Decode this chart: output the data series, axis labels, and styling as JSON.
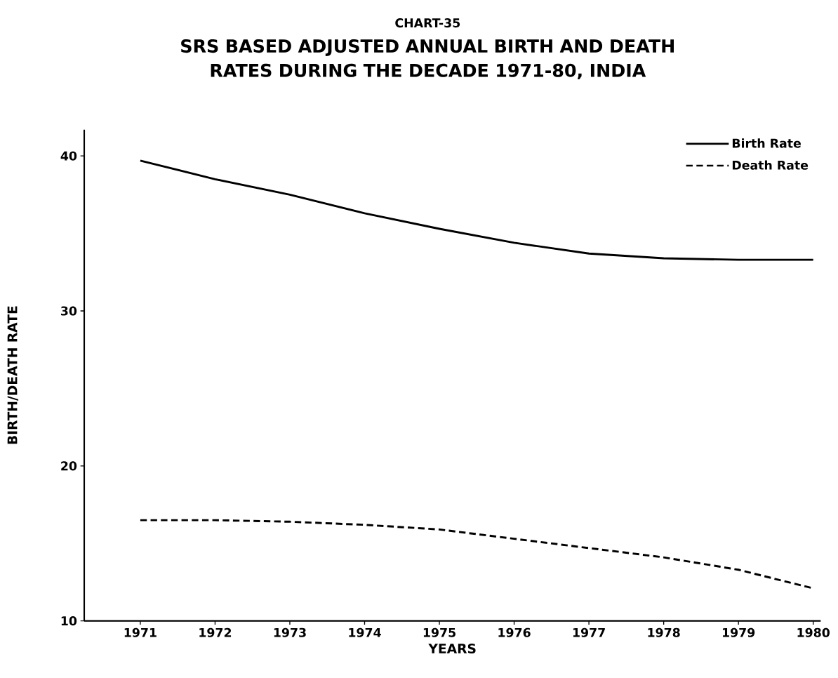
{
  "chart_data": {
    "type": "line",
    "subtitle": "CHART-35",
    "title": "SRS BASED ADJUSTED ANNUAL BIRTH AND DEATH RATES DURING THE DECADE 1971-80, INDIA",
    "xlabel": "YEARS",
    "ylabel": "BIRTH/DEATH RATE",
    "x": [
      1971,
      1972,
      1973,
      1974,
      1975,
      1976,
      1977,
      1978,
      1979,
      1980
    ],
    "series": [
      {
        "name": "Birth Rate",
        "color": "#000000",
        "line_style": "solid",
        "values": [
          39.7,
          38.5,
          37.5,
          36.3,
          35.3,
          34.4,
          33.7,
          33.4,
          33.3,
          33.3
        ]
      },
      {
        "name": "Death Rate",
        "color": "#000000",
        "line_style": "dashed",
        "values": [
          16.5,
          16.5,
          16.4,
          16.2,
          15.9,
          15.3,
          14.7,
          14.1,
          13.3,
          12.1
        ]
      }
    ],
    "xlim": [
      1970.25,
      1980.1
    ],
    "ylim": [
      10,
      41.7
    ],
    "xticks": [
      1971,
      1972,
      1973,
      1974,
      1975,
      1976,
      1977,
      1978,
      1979,
      1980
    ],
    "yticks": [
      10,
      20,
      30,
      40
    ],
    "grid": false,
    "legend": "top right"
  }
}
